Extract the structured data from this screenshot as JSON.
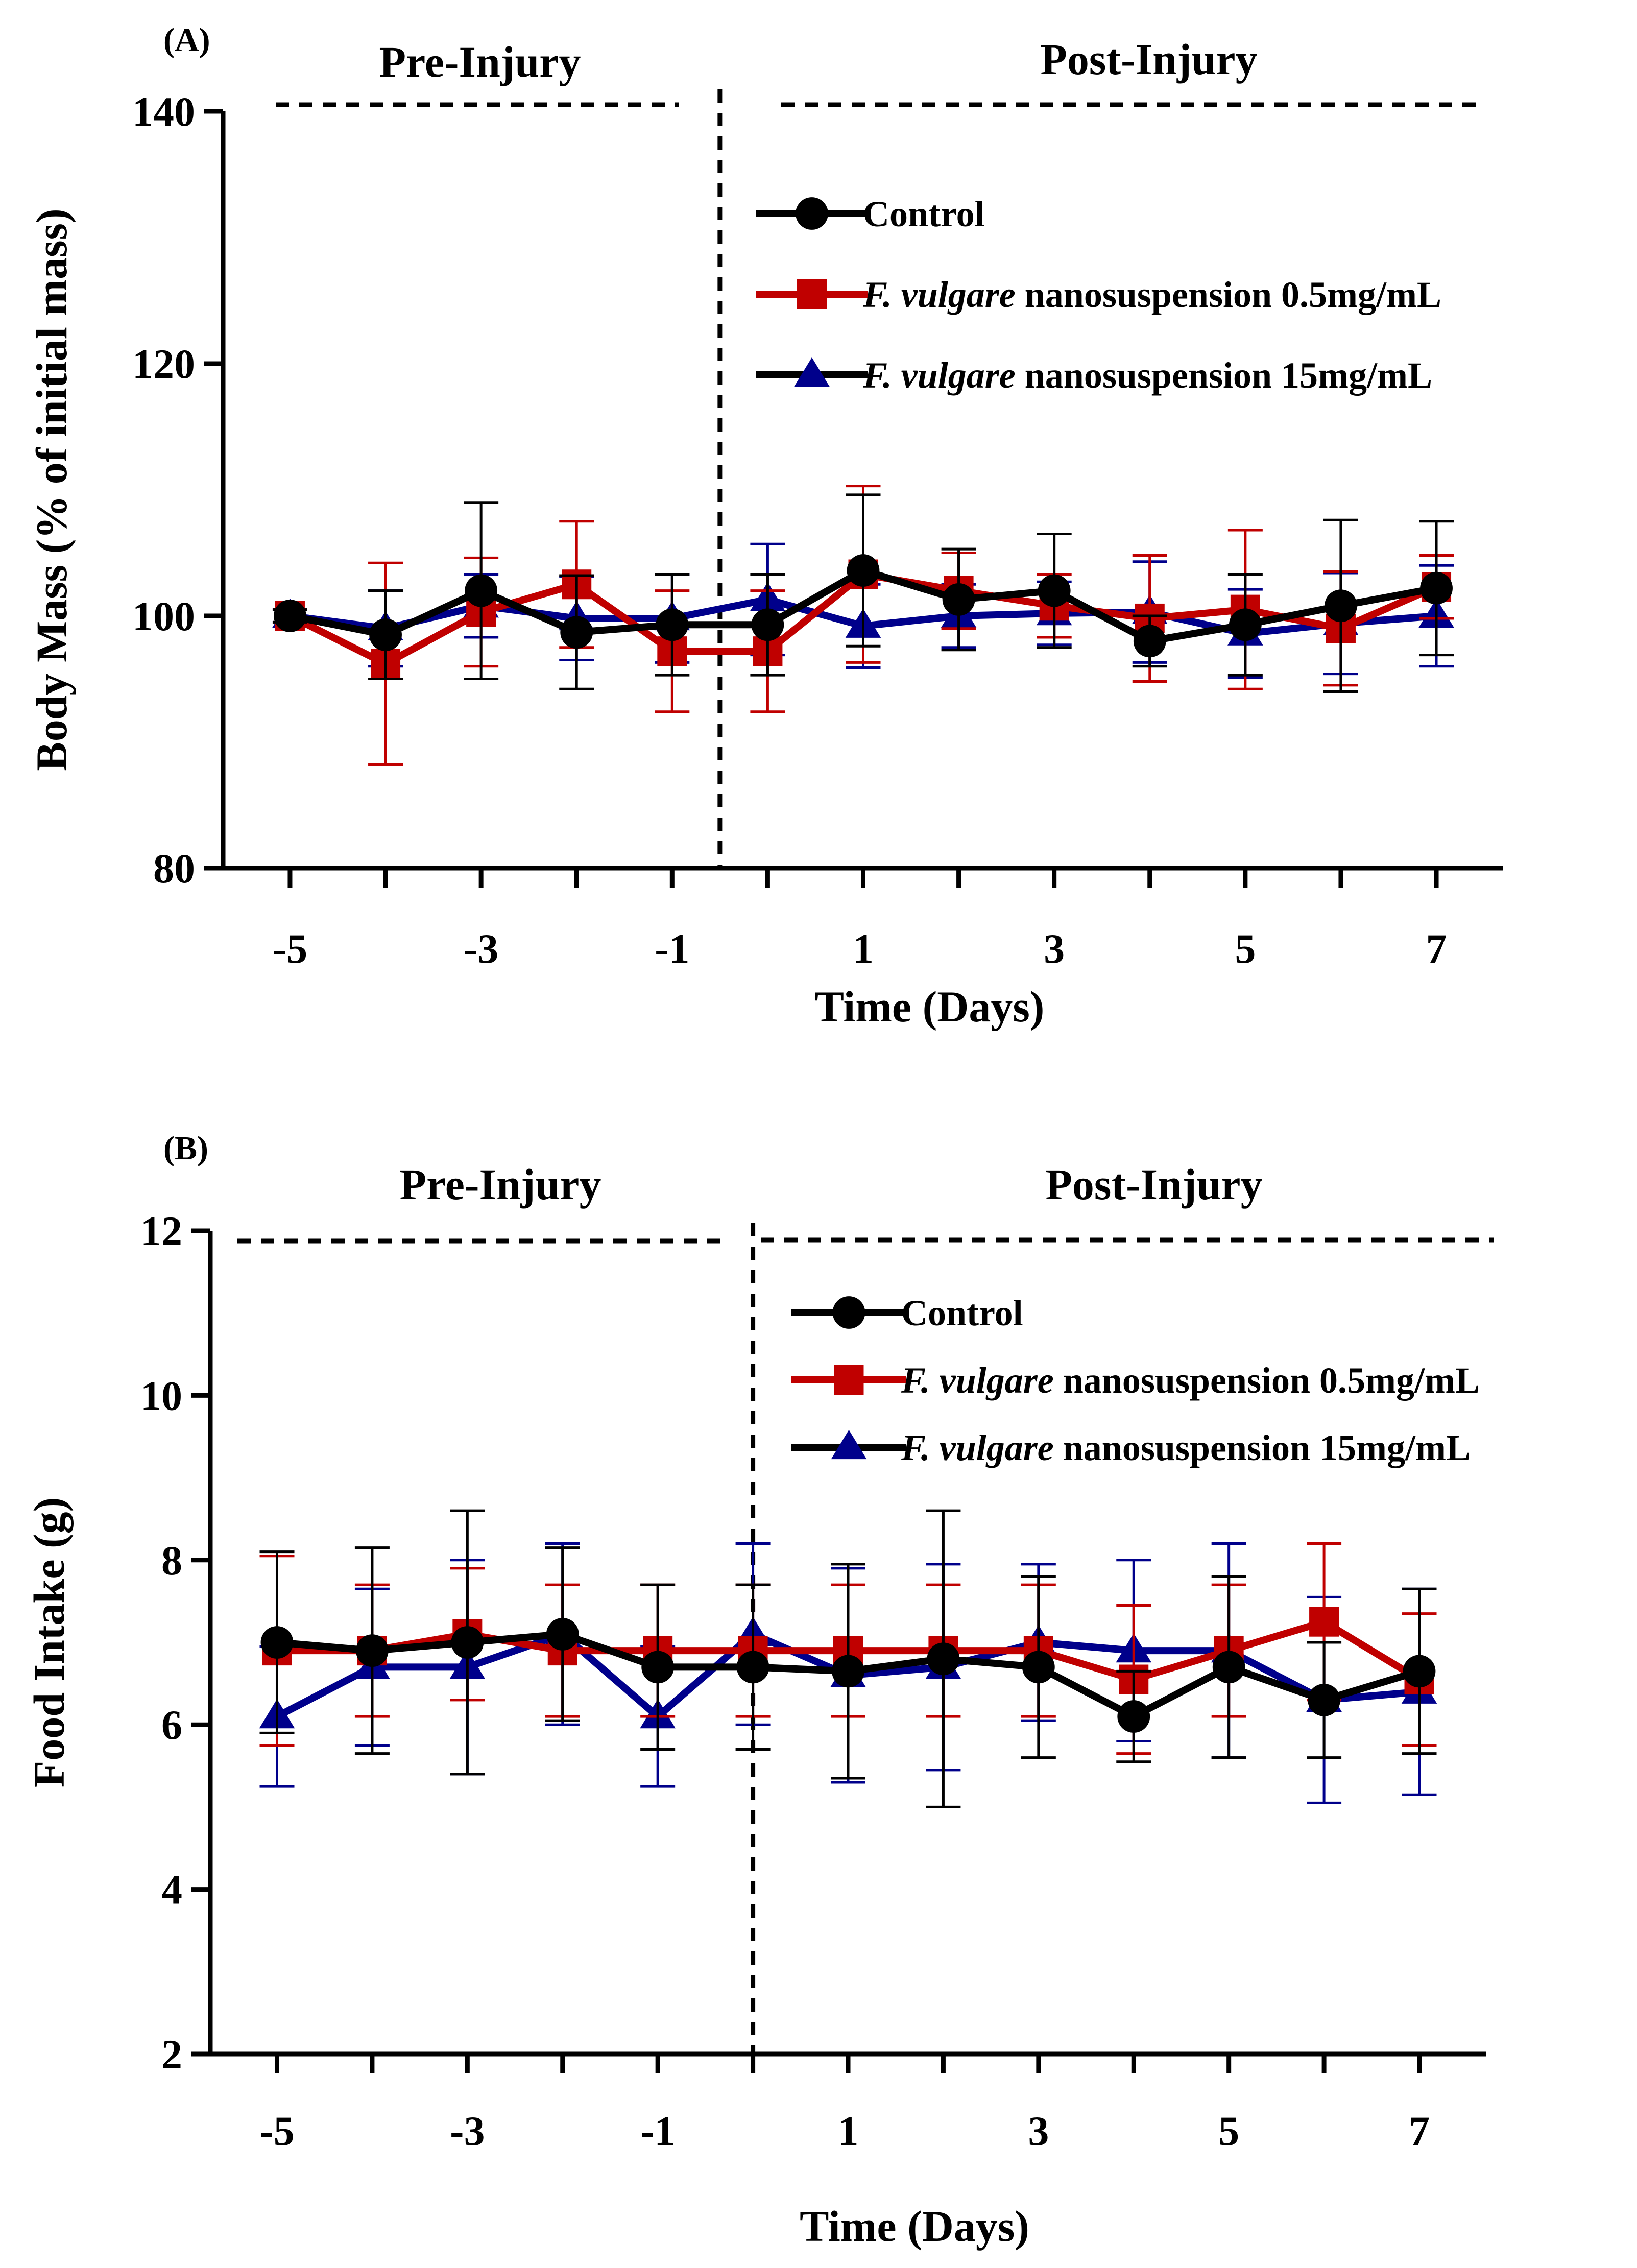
{
  "chart_data": [
    {
      "id": "A",
      "type": "line",
      "panel_label": "(A)",
      "pre_label": "Pre-Injury",
      "post_label": "Post-Injury",
      "xlabel": "Time (Days)",
      "ylabel": "Body Mass (% of initial mass)",
      "xlim": [
        -5.7,
        7.7
      ],
      "ylim": [
        80,
        140
      ],
      "xticks": [
        -5,
        -4,
        -3,
        -2,
        -1,
        0,
        1,
        2,
        3,
        4,
        5,
        6,
        7
      ],
      "xtick_labels": [
        "-5",
        "",
        "-3",
        "",
        "-1",
        "",
        "1",
        "",
        "3",
        "",
        "5",
        "",
        "7"
      ],
      "yticks": [
        80,
        100,
        120,
        140
      ],
      "ytick_labels": [
        "80",
        "100",
        "120",
        "140"
      ],
      "injury_x": -0.5,
      "x": [
        -5,
        -4,
        -3,
        -2,
        -1,
        0,
        1,
        2,
        3,
        4,
        5,
        6,
        7
      ],
      "legend": "upper-right",
      "series": [
        {
          "name": "Control",
          "legend_italic": "",
          "legend_rest": "Control",
          "marker": "circle",
          "color": "#000000",
          "values": [
            100,
            98.5,
            102,
            98.7,
            99.3,
            99.3,
            103.6,
            101.3,
            102,
            98,
            99.3,
            100.8,
            102.2
          ],
          "errors": [
            0.5,
            3.5,
            7,
            4.5,
            4,
            4,
            6,
            4,
            4.5,
            2,
            4,
            6.8,
            5.3
          ]
        },
        {
          "name": "F. vulgare nanosuspension 0.5mg/mL",
          "legend_italic": "F. vulgare",
          "legend_rest": " nanosuspension 0.5mg/mL",
          "marker": "square",
          "color": "#c00000",
          "values": [
            100,
            96.2,
            100.3,
            102.5,
            97.2,
            97.2,
            103.3,
            102,
            100.8,
            99.8,
            100.5,
            99,
            102.3
          ],
          "errors": [
            0.5,
            8,
            4.3,
            5,
            4.8,
            4.8,
            7,
            3,
            2.5,
            5,
            6.3,
            4.5,
            2.5
          ]
        },
        {
          "name": "F. vulgare nanosuspension 15mg/mL",
          "legend_italic": "F. vulgare",
          "legend_rest": " nanosuspension 15mg/mL",
          "marker": "triangle",
          "color": "#00008b",
          "values": [
            100,
            99,
            100.8,
            99.8,
            99.8,
            101.3,
            99.2,
            100,
            100.2,
            100.3,
            98.6,
            99.4,
            100
          ],
          "errors": [
            0.5,
            3,
            2.5,
            3.3,
            3.5,
            4.4,
            3.3,
            2.5,
            2.5,
            4,
            3.5,
            4,
            4
          ]
        }
      ]
    },
    {
      "id": "B",
      "type": "line",
      "panel_label": "(B)",
      "pre_label": "Pre-Injury",
      "post_label": "Post-Injury",
      "xlabel": "Time (Days)",
      "ylabel": "Food Intake (g)",
      "xlim": [
        -5.7,
        7.7
      ],
      "ylim": [
        2,
        12
      ],
      "xticks": [
        -5,
        -4,
        -3,
        -2,
        -1,
        0,
        1,
        2,
        3,
        4,
        5,
        6,
        7
      ],
      "xtick_labels": [
        "-5",
        "",
        "-3",
        "",
        "-1",
        "",
        "1",
        "",
        "3",
        "",
        "5",
        "",
        "7"
      ],
      "yticks": [
        2,
        4,
        6,
        8,
        10,
        12
      ],
      "ytick_labels": [
        "2",
        "4",
        "6",
        "8",
        "10",
        "12"
      ],
      "injury_x": 0,
      "x": [
        -5,
        -4,
        -3,
        -2,
        -1,
        0,
        1,
        2,
        3,
        4,
        5,
        6,
        7
      ],
      "legend": "upper-right",
      "series": [
        {
          "name": "Control",
          "legend_italic": "",
          "legend_rest": "Control",
          "marker": "circle",
          "color": "#000000",
          "values": [
            7,
            6.9,
            7,
            7.1,
            6.7,
            6.7,
            6.65,
            6.8,
            6.7,
            6.1,
            6.7,
            6.3,
            6.65
          ],
          "errors": [
            1.1,
            1.25,
            1.6,
            1.05,
            1,
            1,
            1.3,
            1.8,
            1.1,
            0.55,
            1.1,
            0.7,
            1
          ]
        },
        {
          "name": "F. vulgare nanosuspension 0.5mg/mL",
          "legend_italic": "F. vulgare",
          "legend_rest": " nanosuspension 0.5mg/mL",
          "marker": "square",
          "color": "#c00000",
          "values": [
            6.9,
            6.9,
            7.1,
            6.9,
            6.9,
            6.9,
            6.9,
            6.9,
            6.9,
            6.55,
            6.9,
            7.25,
            6.55
          ],
          "errors": [
            1.15,
            0.8,
            0.8,
            0.8,
            0.8,
            0.8,
            0.8,
            0.8,
            0.8,
            0.9,
            0.8,
            0.95,
            0.8
          ]
        },
        {
          "name": "F. vulgare nanosuspension 15mg/mL",
          "legend_italic": "F. vulgare",
          "legend_rest": " nanosuspension 15mg/mL",
          "marker": "triangle",
          "color": "#00008b",
          "values": [
            6.1,
            6.7,
            6.7,
            7.1,
            6.1,
            7.1,
            6.6,
            6.7,
            7,
            6.9,
            6.9,
            6.3,
            6.4
          ],
          "errors": [
            0.85,
            0.95,
            1.3,
            1.1,
            0.85,
            1.1,
            1.3,
            1.25,
            0.95,
            1.1,
            1.3,
            1.25,
            1.25
          ]
        }
      ]
    }
  ]
}
